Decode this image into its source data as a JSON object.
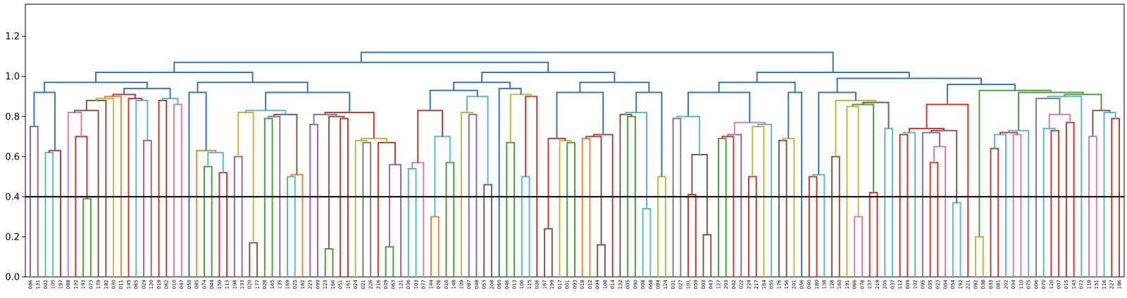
{
  "chart_data": {
    "type": "dendrogram",
    "title": "",
    "xlabel": "",
    "ylabel": "",
    "ylim": [
      0,
      1.36
    ],
    "y_ticks": [
      0.0,
      0.2,
      0.4,
      0.6,
      0.8,
      1.0,
      1.2
    ],
    "y_tick_labels": [
      "0.0",
      "0.2",
      "0.4",
      "0.6",
      "0.8",
      "1.0",
      "1.2"
    ],
    "threshold": 0.4,
    "threshold_color": "#000000",
    "above_threshold_color": "#3b75af",
    "palette": [
      "#ef8636",
      "#519e3e",
      "#c53a32",
      "#8d69b8",
      "#84584e",
      "#d57dbe",
      "#7f7f7f",
      "#bcbc45",
      "#58bbcc"
    ],
    "leaves": [
      "086",
      "131",
      "002",
      "105",
      "197",
      "088",
      "132",
      "193",
      "073",
      "179",
      "182",
      "030",
      "011",
      "145",
      "065",
      "029",
      "130",
      "019",
      "062",
      "010",
      "047",
      "050",
      "085",
      "074",
      "044",
      "150",
      "113",
      "198",
      "133",
      "020",
      "177",
      "028",
      "165",
      "135",
      "169",
      "025",
      "162",
      "223",
      "099",
      "123",
      "166",
      "051",
      "161",
      "024",
      "021",
      "226",
      "216",
      "039",
      "063",
      "121",
      "036",
      "103",
      "077",
      "144",
      "076",
      "016",
      "148",
      "109",
      "087",
      "048",
      "053",
      "208",
      "060",
      "046",
      "013",
      "106",
      "115",
      "026",
      "167",
      "199",
      "017",
      "001",
      "093",
      "018",
      "012",
      "094",
      "108",
      "014",
      "132",
      "005",
      "090",
      "008",
      "068",
      "084",
      "124",
      "031",
      "027",
      "101",
      "059",
      "003",
      "043",
      "127",
      "203",
      "042",
      "022",
      "224",
      "217",
      "164",
      "055",
      "176",
      "156",
      "201",
      "056",
      "040",
      "180",
      "138",
      "128",
      "160",
      "191",
      "066",
      "078",
      "137",
      "219",
      "205",
      "037",
      "112",
      "009",
      "102",
      "095",
      "035",
      "023",
      "004",
      "054",
      "192",
      "221",
      "092",
      "038",
      "033",
      "081",
      "202",
      "034",
      "110",
      "075",
      "006",
      "070",
      "120",
      "007",
      "015",
      "143",
      "072",
      "118",
      "151",
      "116",
      "227",
      "186"
    ],
    "links": [
      [
        0,
        1,
        0.39,
        2
      ],
      [
        2,
        3,
        0.68,
        4
      ],
      [
        0,
        4,
        0.55,
        2
      ],
      [
        0,
        6,
        0.79,
        2
      ],
      [
        1,
        4,
        0.14,
        2
      ],
      [
        1,
        4,
        0.15,
        2
      ],
      [
        1,
        3,
        0.57,
        2
      ],
      [
        1,
        2,
        0.67,
        2
      ],
      [
        0,
        3,
        0.67,
        2
      ],
      [
        0,
        2,
        0.8,
        2
      ],
      [
        1,
        1,
        0.41,
        3
      ],
      [
        0,
        2,
        0.5,
        3
      ],
      [
        0,
        1,
        0.5,
        3
      ],
      [
        1,
        2,
        0.42,
        3
      ],
      [
        0,
        2,
        0.57,
        3
      ],
      [
        0,
        1,
        0.64,
        3
      ],
      [
        0,
        4,
        0.73,
        3
      ],
      [
        4,
        5,
        0.79,
        3
      ],
      [
        3,
        4,
        0.7,
        3
      ],
      [
        0,
        8,
        0.88,
        3
      ],
      [
        0,
        1,
        0.6,
        4
      ],
      [
        2,
        3,
        0.76,
        4
      ],
      [
        0,
        2,
        0.56,
        4
      ],
      [
        0,
        4,
        0.81,
        4
      ],
      [
        3,
        4,
        0.24,
        5
      ],
      [
        2,
        3,
        0.34,
        5
      ],
      [
        0,
        2,
        0.21,
        5
      ],
      [
        1,
        4,
        0.68,
        5
      ],
      [
        1,
        2,
        0.3,
        6
      ],
      [
        4,
        5,
        0.65,
        6
      ],
      [
        3,
        4,
        0.71,
        6
      ],
      [
        0,
        4,
        0.7,
        6
      ],
      [
        0,
        6,
        0.82,
        6
      ],
      [
        1,
        2,
        0.86,
        6
      ],
      [
        0,
        1,
        0.23,
        7
      ],
      [
        0,
        1,
        0.67,
        7
      ],
      [
        1,
        2,
        0.21,
        8
      ],
      [
        0,
        2,
        0.29,
        8
      ],
      [
        0,
        1,
        0.5,
        8
      ],
      [
        0,
        1,
        0.75,
        8
      ],
      [
        0,
        1,
        0.85,
        8
      ],
      [
        1,
        2,
        0.37,
        9
      ],
      [
        0,
        1,
        0.39,
        9
      ],
      [
        0,
        1,
        0.62,
        9
      ],
      [
        0,
        2,
        0.79,
        9
      ],
      [
        2,
        3,
        0.5,
        9
      ],
      [
        1,
        2,
        0.54,
        9
      ],
      [
        0,
        1,
        0.5,
        9
      ],
      [
        2,
        3,
        0.34,
        9
      ],
      [
        1,
        2,
        0.7,
        9
      ],
      [
        0,
        1,
        0.74,
        9
      ],
      [
        1,
        3,
        0.71,
        9
      ],
      [
        0,
        3,
        0.82,
        9
      ],
      [
        0,
        4,
        0.88,
        9
      ],
      [
        1,
        2,
        0.28,
        1
      ],
      [
        0,
        1,
        0.3,
        1
      ],
      [
        0,
        1,
        0.69,
        1
      ],
      [
        0,
        1,
        0.69,
        2
      ],
      [
        0,
        1,
        0.81,
        2
      ],
      [
        0,
        2,
        0.21,
        3
      ],
      [
        0,
        1,
        0.55,
        3
      ],
      [
        0,
        1,
        0.52,
        3
      ],
      [
        0,
        1,
        0.67,
        3
      ],
      [
        0,
        1,
        0.23,
        3
      ],
      [
        0,
        1,
        0.5,
        3
      ],
      [
        0,
        1,
        0.71,
        3
      ],
      [
        0,
        1,
        0.77,
        3
      ],
      [
        1,
        2,
        0.82,
        3
      ],
      [
        0,
        2,
        0.79,
        3
      ],
      [
        0,
        4,
        0.9,
        3
      ],
      [
        0,
        1,
        0.51,
        4
      ],
      [
        0,
        1,
        0.72,
        4
      ],
      [
        0,
        1,
        0.75,
        4
      ],
      [
        1,
        2,
        0.17,
        5
      ],
      [
        1,
        2,
        0.46,
        5
      ],
      [
        0,
        1,
        0.61,
        5
      ],
      [
        0,
        1,
        0.64,
        5
      ],
      [
        0,
        1,
        0.72,
        5
      ],
      [
        1,
        2,
        0.27,
        5
      ],
      [
        0,
        1,
        0.16,
        5
      ],
      [
        0,
        1,
        0.6,
        5
      ],
      [
        0,
        1,
        0.52,
        5
      ],
      [
        0,
        1,
        0.52,
        5
      ],
      [
        0,
        1,
        0.68,
        5
      ],
      [
        0,
        1,
        0.74,
        5
      ],
      [
        0,
        1,
        0.88,
        5
      ],
      [
        0,
        1,
        0.57,
        6
      ],
      [
        0,
        1,
        0.73,
        6
      ],
      [
        0,
        1,
        0.81,
        6
      ],
      [
        0,
        1,
        0.72,
        7
      ],
      [
        0,
        1,
        0.79,
        7
      ],
      [
        0,
        1,
        0.89,
        7
      ],
      [
        0,
        1,
        0.35,
        8
      ],
      [
        1,
        2,
        0.19,
        8
      ],
      [
        1,
        2,
        0.24,
        8
      ],
      [
        0,
        1,
        0.14,
        8
      ],
      [
        1,
        2,
        0.2,
        8
      ],
      [
        0,
        2,
        0.61,
        8
      ],
      [
        0,
        1,
        0.67,
        8
      ],
      [
        0,
        1,
        0.82,
        8
      ],
      [
        0,
        1,
        0.49,
        9
      ],
      [
        0,
        1,
        0.56,
        9
      ],
      [
        0,
        1,
        0.63,
        9
      ],
      [
        0,
        1,
        0.7,
        9
      ],
      [
        0,
        1,
        0.76,
        9
      ],
      [
        0,
        1,
        0.46,
        9
      ],
      [
        0,
        1,
        0.62,
        9
      ],
      [
        0,
        1,
        0.65,
        9
      ],
      [
        0,
        1,
        0.77,
        9
      ],
      [
        0,
        1,
        0.9,
        9
      ],
      [
        0,
        1,
        0.24,
        1
      ],
      [
        0,
        1,
        0.68,
        1
      ],
      [
        0,
        1,
        0.48,
        2
      ],
      [
        0,
        1,
        0.6,
        2
      ],
      [
        0,
        1,
        0.76,
        2
      ],
      [
        0,
        1,
        0.46,
        3
      ],
      [
        0,
        1,
        0.54,
        3
      ],
      [
        0,
        1,
        0.57,
        3
      ],
      [
        0,
        1,
        0.67,
        3
      ],
      [
        0,
        1,
        0.83,
        3
      ],
      [
        0,
        1,
        0.86,
        3
      ]
    ]
  }
}
